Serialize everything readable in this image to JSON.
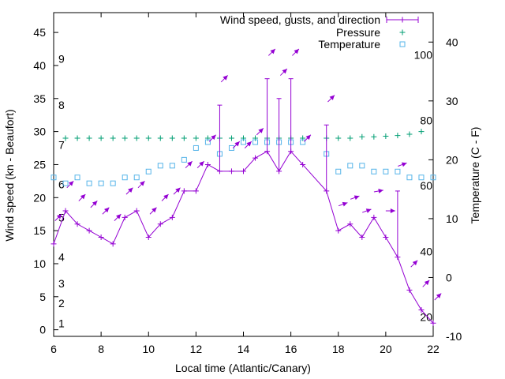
{
  "chart_data": {
    "type": "line",
    "xlabel": "Local time (Atlantic/Canary)",
    "ylabel_left": "Wind speed (kn - Beaufort)",
    "ylabel_right": "Temperature (C - F)",
    "xlim": [
      6,
      22
    ],
    "ylim_left": [
      -1,
      48
    ],
    "ylim_right": [
      -10,
      45
    ],
    "xticks": [
      6,
      8,
      10,
      12,
      14,
      16,
      18,
      20,
      22
    ],
    "yticks_left": [
      0,
      5,
      10,
      15,
      20,
      25,
      30,
      35,
      40,
      45
    ],
    "yticks_right": [
      -10,
      0,
      10,
      20,
      30,
      40
    ],
    "beaufort_labels": [
      {
        "label": "1",
        "value": 1
      },
      {
        "label": "2",
        "value": 4
      },
      {
        "label": "3",
        "value": 7
      },
      {
        "label": "4",
        "value": 11
      },
      {
        "label": "5",
        "value": 17
      },
      {
        "label": "6",
        "value": 22
      },
      {
        "label": "7",
        "value": 28
      },
      {
        "label": "8",
        "value": 34
      },
      {
        "label": "9",
        "value": 41
      }
    ],
    "fahrenheit_labels": [
      {
        "label": "20",
        "value": -6.7
      },
      {
        "label": "40",
        "value": 4.4
      },
      {
        "label": "60",
        "value": 15.6
      },
      {
        "label": "80",
        "value": 26.7
      },
      {
        "label": "100",
        "value": 37.8
      }
    ],
    "legend": {
      "position": "top-right",
      "entries": [
        "Wind speed, gusts, and direction",
        "Pressure",
        "Temperature"
      ]
    },
    "colors": {
      "wind": "#9400d3",
      "pressure": "#009e73",
      "temperature": "#56b4e9"
    },
    "series": [
      {
        "name": "Wind speed, gusts, and direction",
        "x": [
          6,
          6.5,
          7,
          7.5,
          8,
          8.5,
          9,
          9.5,
          10,
          10.5,
          11,
          11.5,
          12,
          12.5,
          13,
          13.5,
          14,
          14.5,
          15,
          15.5,
          16,
          16.5,
          17.5,
          18,
          18.5,
          19,
          19.5,
          20,
          20.5,
          21,
          21.5,
          22
        ],
        "values": [
          13,
          18,
          16,
          15,
          14,
          13,
          17,
          18,
          14,
          16,
          17,
          21,
          21,
          25,
          24,
          24,
          24,
          26,
          27,
          24,
          27,
          25,
          21,
          15,
          16,
          14,
          17,
          14,
          11,
          6,
          3,
          1
        ],
        "gusts": [
          null,
          null,
          null,
          null,
          null,
          null,
          null,
          null,
          null,
          null,
          null,
          null,
          null,
          null,
          34,
          null,
          null,
          null,
          38,
          35,
          38,
          null,
          31,
          null,
          null,
          null,
          null,
          null,
          21,
          null,
          null,
          null
        ],
        "direction_deg": [
          225,
          225,
          225,
          225,
          225,
          225,
          225,
          225,
          225,
          225,
          225,
          225,
          225,
          225,
          225,
          225,
          225,
          225,
          225,
          225,
          225,
          225,
          225,
          250,
          250,
          250,
          260,
          270,
          250,
          225,
          225,
          225
        ]
      },
      {
        "name": "Pressure",
        "x": [
          6.5,
          7,
          7.5,
          8,
          8.5,
          9,
          9.5,
          10,
          10.5,
          11,
          11.5,
          12,
          12.5,
          13,
          13.5,
          14,
          14.5,
          15,
          15.5,
          16,
          16.5,
          17.5,
          18,
          18.5,
          19,
          19.5,
          20,
          20.5,
          21,
          21.5
        ],
        "values": [
          29,
          29,
          29,
          29,
          29,
          29,
          29,
          29,
          29,
          29,
          29,
          29,
          29,
          29,
          29,
          29,
          29,
          29,
          29,
          29,
          29,
          29,
          29,
          29,
          29.2,
          29.2,
          29.3,
          29.4,
          29.6,
          30
        ]
      },
      {
        "name": "Temperature",
        "x": [
          6,
          6.5,
          7,
          7.5,
          8,
          8.5,
          9,
          9.5,
          10,
          10.5,
          11,
          11.5,
          12,
          12.5,
          13,
          13.5,
          14,
          14.5,
          15,
          15.5,
          16,
          16.5,
          17.5,
          18,
          18.5,
          19,
          19.5,
          20,
          20.5,
          21,
          21.5,
          22
        ],
        "values": [
          17,
          16,
          17,
          16,
          16,
          16,
          17,
          17,
          18,
          19,
          19,
          20,
          22,
          23,
          21,
          22,
          23,
          23,
          23,
          23,
          23,
          23,
          21,
          18,
          19,
          19,
          18,
          18,
          18,
          17,
          17,
          17
        ]
      }
    ]
  }
}
